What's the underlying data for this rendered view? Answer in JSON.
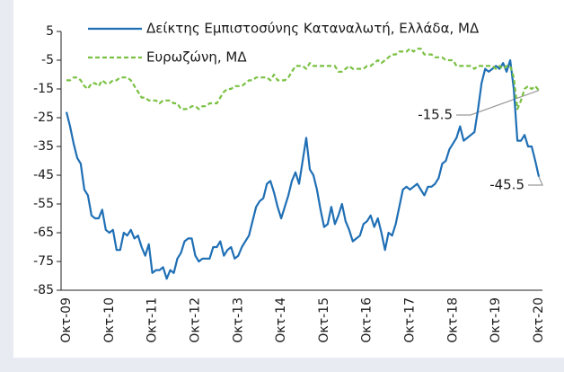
{
  "chart_data": {
    "type": "line",
    "categories": [
      "Οκτ-09",
      null,
      null,
      null,
      null,
      null,
      null,
      null,
      null,
      null,
      null,
      null,
      "Οκτ-10",
      null,
      null,
      null,
      null,
      null,
      null,
      null,
      null,
      null,
      null,
      null,
      "Οκτ-11",
      null,
      null,
      null,
      null,
      null,
      null,
      null,
      null,
      null,
      null,
      null,
      "Οκτ-12",
      null,
      null,
      null,
      null,
      null,
      null,
      null,
      null,
      null,
      null,
      null,
      "Οκτ-13",
      null,
      null,
      null,
      null,
      null,
      null,
      null,
      null,
      null,
      null,
      null,
      "Οκτ-14",
      null,
      null,
      null,
      null,
      null,
      null,
      null,
      null,
      null,
      null,
      null,
      "Οκτ-15",
      null,
      null,
      null,
      null,
      null,
      null,
      null,
      null,
      null,
      null,
      null,
      "Οκτ-16",
      null,
      null,
      null,
      null,
      null,
      null,
      null,
      null,
      null,
      null,
      null,
      "Οκτ-17",
      null,
      null,
      null,
      null,
      null,
      null,
      null,
      null,
      null,
      null,
      null,
      "Οκτ-18",
      null,
      null,
      null,
      null,
      null,
      null,
      null,
      null,
      null,
      null,
      null,
      "Οκτ-19",
      null,
      null,
      null,
      null,
      null,
      null,
      null,
      null,
      null,
      null,
      null,
      "Οκτ-20"
    ],
    "series": [
      {
        "name": "Δείκτης Εμπιστοσύνης Καταναλωτή, Ελλάδα, ΜΔ",
        "color": "#1f6fb5",
        "dashed": false,
        "values": [
          -23,
          -28,
          -34,
          -39,
          -41,
          -50,
          -52,
          -59,
          -60,
          -60,
          -57,
          -64,
          -65,
          -64,
          -71,
          -71,
          -65,
          -66,
          -64,
          -67,
          -66,
          -70,
          -73,
          -69,
          -79,
          -78,
          -78,
          -77,
          -81,
          -78,
          -79,
          -74,
          -72,
          -68,
          -67,
          -67,
          -73,
          -75,
          -74,
          -74,
          -74,
          -70,
          -70,
          -68,
          -73,
          -71,
          -70,
          -74,
          -73,
          -70,
          -68,
          -66,
          -61,
          -56,
          -54,
          -53,
          -48,
          -47,
          -51,
          -56,
          -60,
          -56,
          -52,
          -47,
          -44,
          -48,
          -40,
          -32,
          -43,
          -45,
          -50,
          -57,
          -63,
          -62,
          -56,
          -62,
          -59,
          -55,
          -61,
          -64,
          -68,
          -67,
          -66,
          -62,
          -61,
          -59,
          -63,
          -60,
          -65,
          -71,
          -65,
          -66,
          -62,
          -56,
          -50,
          -49,
          -50,
          -49,
          -48,
          -50,
          -52,
          -49,
          -49,
          -48,
          -46,
          -41,
          -40,
          -36,
          -34,
          -32,
          -28,
          -33,
          -32,
          -31,
          -30,
          -22,
          -13,
          -8,
          -9,
          -8,
          -7,
          -8,
          -6,
          -9,
          -5,
          -15,
          -33,
          -33,
          -31,
          -35,
          -35,
          -40,
          -45.5
        ]
      },
      {
        "name": "Ευρωζώνη, ΜΔ",
        "color": "#7ac143",
        "dashed": true,
        "values": [
          -12,
          -12,
          -11,
          -11,
          -12,
          -14,
          -15,
          -13,
          -13,
          -14,
          -12,
          -13,
          -13,
          -12,
          -12,
          -11,
          -11,
          -11,
          -12,
          -14,
          -16,
          -18,
          -18,
          -19,
          -19,
          -19,
          -20,
          -19,
          -19,
          -19,
          -20,
          -20,
          -22,
          -22,
          -22,
          -21,
          -21,
          -22,
          -21,
          -21,
          -20,
          -20,
          -20,
          -18,
          -16,
          -15,
          -15,
          -14,
          -14,
          -14,
          -13,
          -12,
          -12,
          -11,
          -11,
          -11,
          -11,
          -12,
          -10,
          -12,
          -12,
          -12,
          -11,
          -9,
          -7,
          -7,
          -7,
          -8,
          -6,
          -7,
          -7,
          -7,
          -7,
          -7,
          -7,
          -7,
          -9,
          -9,
          -8,
          -7,
          -8,
          -8,
          -8,
          -8,
          -7,
          -7,
          -6,
          -5,
          -6,
          -5,
          -4,
          -3,
          -3,
          -2,
          -2,
          -2,
          -1,
          -2,
          -1,
          -1,
          -3,
          -3,
          -3,
          -4,
          -4,
          -4,
          -5,
          -5,
          -5,
          -7,
          -7,
          -7,
          -7,
          -7,
          -8,
          -7,
          -7,
          -7,
          -7,
          -7,
          -8,
          -7,
          -8,
          -7,
          -7,
          -11,
          -22,
          -19,
          -15,
          -14,
          -15,
          -14,
          -15.5
        ]
      }
    ],
    "annotations": [
      {
        "text": "-15.5"
      },
      {
        "text": "-45.5"
      }
    ],
    "ylim": [
      -85,
      5
    ],
    "yticks": [
      5,
      -5,
      -15,
      -25,
      -35,
      -45,
      -55,
      -65,
      -75,
      -85
    ],
    "grid": false,
    "legend": "top"
  }
}
